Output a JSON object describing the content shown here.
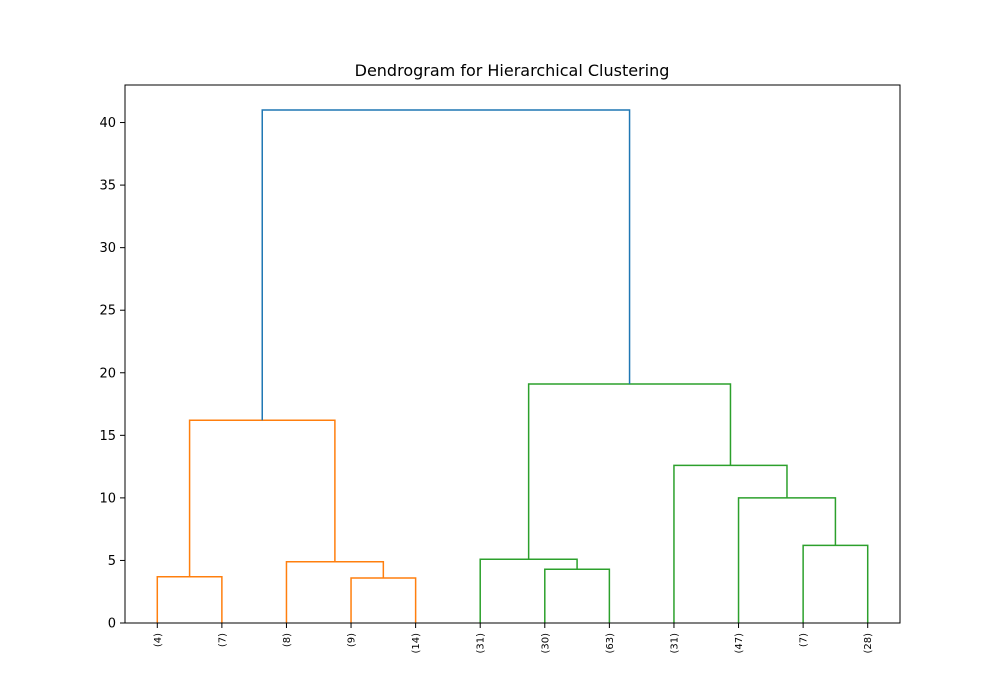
{
  "chart_data": {
    "type": "dendrogram",
    "title": "Dendrogram for Hierarchical Clustering",
    "xlabel": "",
    "ylabel": "",
    "ylim": [
      0,
      43
    ],
    "y_ticks": [
      0,
      5,
      10,
      15,
      20,
      25,
      30,
      35,
      40
    ],
    "leaves": [
      "(4)",
      "(7)",
      "(8)",
      "(9)",
      "(14)",
      "(31)",
      "(30)",
      "(63)",
      "(31)",
      "(47)",
      "(7)",
      "(28)"
    ],
    "colors": {
      "cluster_1": "#ff7f0e",
      "cluster_2": "#2ca02c",
      "root": "#1f77b4"
    },
    "links": [
      {
        "id": "m1",
        "left": "leaf:0",
        "right": "leaf:1",
        "height": 3.7,
        "color": "cluster_1"
      },
      {
        "id": "m2",
        "left": "leaf:3",
        "right": "leaf:4",
        "height": 3.6,
        "color": "cluster_1"
      },
      {
        "id": "m3",
        "left": "leaf:2",
        "right": "node:m2",
        "height": 4.9,
        "color": "cluster_1"
      },
      {
        "id": "m4",
        "left": "node:m1",
        "right": "node:m3",
        "height": 16.2,
        "color": "cluster_1"
      },
      {
        "id": "m5",
        "left": "leaf:6",
        "right": "leaf:7",
        "height": 4.3,
        "color": "cluster_2"
      },
      {
        "id": "m6",
        "left": "leaf:5",
        "right": "node:m5",
        "height": 5.1,
        "color": "cluster_2"
      },
      {
        "id": "m7",
        "left": "leaf:10",
        "right": "leaf:11",
        "height": 6.2,
        "color": "cluster_2"
      },
      {
        "id": "m8",
        "left": "leaf:9",
        "right": "node:m7",
        "height": 10.0,
        "color": "cluster_2"
      },
      {
        "id": "m9",
        "left": "leaf:8",
        "right": "node:m8",
        "height": 12.6,
        "color": "cluster_2"
      },
      {
        "id": "m10",
        "left": "node:m6",
        "right": "node:m9",
        "height": 19.1,
        "color": "cluster_2"
      },
      {
        "id": "m11",
        "left": "node:m4",
        "right": "node:m10",
        "height": 41.0,
        "color": "root"
      }
    ]
  }
}
